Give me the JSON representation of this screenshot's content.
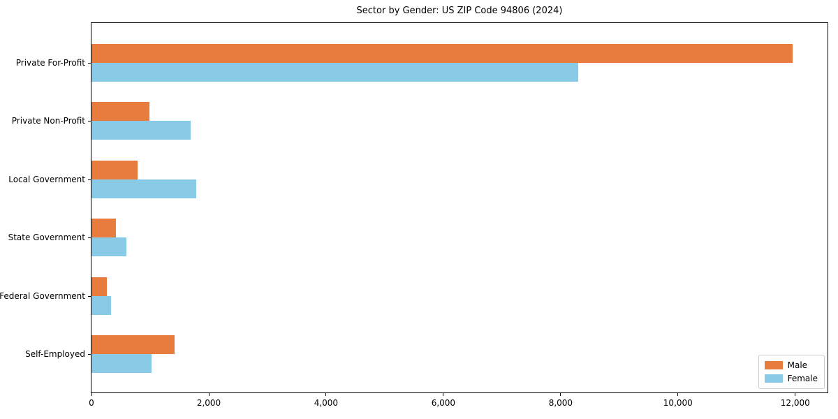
{
  "chart_data": {
    "type": "bar",
    "orientation": "horizontal",
    "title": "Sector by Gender: US ZIP Code 94806 (2024)",
    "categories": [
      "Private For-Profit",
      "Private Non-Profit",
      "Local Government",
      "State Government",
      "Federal Government",
      "Self-Employed"
    ],
    "series": [
      {
        "name": "Male",
        "color": "#e87b3e",
        "values": [
          11950,
          990,
          790,
          420,
          260,
          1420
        ]
      },
      {
        "name": "Female",
        "color": "#89cbe7",
        "values": [
          8300,
          1690,
          1780,
          600,
          330,
          1020
        ]
      }
    ],
    "xlabel": "",
    "ylabel": "",
    "xlim": [
      0,
      12550
    ],
    "x_ticks": [
      0,
      2000,
      4000,
      6000,
      8000,
      10000,
      12000
    ],
    "x_tick_labels": [
      "0",
      "2,000",
      "4,000",
      "6,000",
      "8,000",
      "10,000",
      "12,000"
    ],
    "grid": false,
    "legend_position": "lower right",
    "plot_border_color": "#000000",
    "background_color": "#ffffff"
  }
}
